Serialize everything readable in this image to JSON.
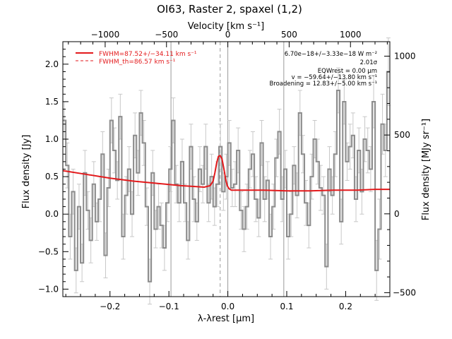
{
  "chart_data": {
    "type": "line",
    "title": "OI63, Raster 2, spaxel (1,2)",
    "xlabel": "λ-λrest [μm]",
    "ylabel": "Flux density [Jy]",
    "top_xlabel": "Velocity [km s⁻¹]",
    "right_ylabel": "Flux density [MJy sr⁻¹]",
    "xlim": [
      -0.28,
      0.275
    ],
    "ylim": [
      -1.1,
      2.3
    ],
    "top_xlim": [
      -1345,
      1321
    ],
    "right_ylim": [
      -525,
      1092
    ],
    "x_ticks": [
      -0.2,
      -0.1,
      0.0,
      0.1,
      0.2
    ],
    "x_tick_labels": [
      "−0.2",
      "−0.1",
      "0.0",
      "0.1",
      "0.2"
    ],
    "y_ticks": [
      -1.0,
      -0.5,
      0.0,
      0.5,
      1.0,
      1.5,
      2.0
    ],
    "y_tick_labels": [
      "−1.0",
      "−0.5",
      "0.0",
      "0.5",
      "1.0",
      "1.5",
      "2.0"
    ],
    "top_ticks": [
      -1000,
      -500,
      0,
      500,
      1000
    ],
    "top_tick_labels": [
      "−1000",
      "−500",
      "0",
      "500",
      "1000"
    ],
    "right_ticks": [
      0,
      500,
      1000
    ],
    "right_tick_labels": [
      "0",
      "500",
      "1000"
    ],
    "right_minor_ticks": [
      -500
    ],
    "right_minor_labels": [
      "−500"
    ],
    "vertical_lines": [
      -0.0965,
      0.0,
      0.095
    ],
    "rest_line": -0.013,
    "legend": [
      {
        "label": "FWHM=87.52+/−34.11 km s⁻¹",
        "style": "solid",
        "color": "#e31a1c"
      },
      {
        "label": "FWHM_th=86.57 km s⁻¹",
        "style": "dashed",
        "color": "#e31a1c"
      }
    ],
    "annotations": [
      "6.70e−18+/−3.33e−18 W m⁻²",
      "2.01σ",
      "EQWrest = 0.00 μm",
      "v = −59.64+/−13.80 km s⁻¹",
      "Broadening = 12.83+/−5.00 km s⁻¹"
    ],
    "spectrum": {
      "x": [
        -0.28,
        -0.275,
        -0.27,
        -0.265,
        -0.26,
        -0.255,
        -0.25,
        -0.245,
        -0.24,
        -0.235,
        -0.23,
        -0.225,
        -0.22,
        -0.215,
        -0.21,
        -0.205,
        -0.2,
        -0.195,
        -0.19,
        -0.185,
        -0.18,
        -0.175,
        -0.17,
        -0.165,
        -0.16,
        -0.155,
        -0.15,
        -0.145,
        -0.14,
        -0.135,
        -0.13,
        -0.125,
        -0.12,
        -0.115,
        -0.11,
        -0.105,
        -0.1,
        -0.095,
        -0.09,
        -0.085,
        -0.08,
        -0.075,
        -0.07,
        -0.065,
        -0.06,
        -0.055,
        -0.05,
        -0.045,
        -0.04,
        -0.035,
        -0.03,
        -0.025,
        -0.02,
        -0.015,
        -0.01,
        -0.005,
        0.0,
        0.005,
        0.01,
        0.015,
        0.02,
        0.025,
        0.03,
        0.035,
        0.04,
        0.045,
        0.05,
        0.055,
        0.06,
        0.065,
        0.07,
        0.075,
        0.08,
        0.085,
        0.09,
        0.095,
        0.1,
        0.105,
        0.11,
        0.115,
        0.12,
        0.125,
        0.13,
        0.135,
        0.14,
        0.145,
        0.15,
        0.155,
        0.16,
        0.165,
        0.17,
        0.175,
        0.18,
        0.185,
        0.19,
        0.195,
        0.2,
        0.205,
        0.21,
        0.215,
        0.22,
        0.225,
        0.23,
        0.235,
        0.24,
        0.245,
        0.25,
        0.255,
        0.26,
        0.265,
        0.27
      ],
      "y": [
        1.25,
        0.65,
        -0.3,
        0.3,
        -0.75,
        0.1,
        -0.65,
        0.55,
        0.05,
        -0.35,
        0.4,
        -0.1,
        0.2,
        0.8,
        -0.55,
        0.35,
        1.25,
        0.85,
        0.45,
        1.3,
        -0.3,
        0.25,
        0.6,
        0.0,
        1.05,
        0.55,
        1.35,
        0.95,
        0.1,
        -0.9,
        0.55,
        -0.2,
        0.1,
        -0.15,
        -0.45,
        0.15,
        0.6,
        1.25,
        0.4,
        0.15,
        0.7,
        0.15,
        -0.35,
        0.9,
        0.2,
        -0.1,
        0.6,
        0.4,
        0.9,
        0.15,
        0.5,
        0.1,
        0.4,
        0.9,
        0.3,
        0.5,
        0.95,
        0.35,
        0.4,
        0.85,
        0.05,
        -0.2,
        0.1,
        0.6,
        0.8,
        0.2,
        -0.05,
        0.95,
        0.2,
        0.45,
        -0.3,
        0.1,
        0.75,
        1.1,
        0.2,
        0.6,
        -0.3,
        0.0,
        0.65,
        0.25,
        1.35,
        0.8,
        0.15,
        -0.15,
        0.5,
        1.0,
        0.7,
        0.35,
        0.25,
        -0.7,
        0.6,
        0.25,
        0.8,
        1.65,
        -0.1,
        1.5,
        0.7,
        0.9,
        1.05,
        0.2,
        0.85,
        0.3,
        1.0,
        0.85,
        0.6,
        1.5,
        -0.75,
        -0.2,
        1.2,
        0.85,
        1.9
      ],
      "yerr": [
        0.25,
        0.3,
        0.3,
        0.3,
        0.3,
        0.3,
        0.25,
        0.3,
        0.25,
        0.3,
        0.3,
        0.25,
        0.3,
        0.3,
        0.3,
        0.25,
        0.3,
        0.3,
        0.25,
        0.3,
        0.3,
        0.25,
        0.3,
        0.3,
        0.3,
        0.3,
        0.3,
        0.3,
        0.25,
        0.3,
        0.3,
        0.25,
        0.3,
        0.3,
        0.3,
        0.25,
        0.3,
        0.3,
        0.25,
        0.25,
        0.3,
        0.25,
        0.25,
        0.3,
        0.3,
        0.25,
        0.3,
        0.25,
        0.3,
        0.25,
        0.3,
        0.25,
        0.3,
        0.3,
        0.25,
        0.3,
        0.3,
        0.25,
        0.3,
        0.3,
        0.25,
        0.3,
        0.3,
        0.25,
        0.3,
        0.3,
        0.25,
        0.3,
        0.3,
        0.25,
        0.3,
        0.3,
        0.25,
        0.3,
        0.3,
        0.25,
        0.3,
        0.3,
        0.25,
        0.3,
        0.3,
        0.25,
        0.3,
        0.3,
        0.3,
        0.25,
        0.3,
        0.3,
        0.25,
        0.3,
        0.3,
        0.25,
        0.3,
        0.3,
        0.3,
        0.3,
        0.25,
        0.3,
        0.3,
        0.3,
        0.3,
        0.3,
        0.3,
        0.3,
        0.3,
        0.35,
        0.4,
        0.4,
        0.4,
        0.35,
        0.45
      ]
    },
    "fit": {
      "x": [
        -0.28,
        -0.24,
        -0.2,
        -0.16,
        -0.12,
        -0.08,
        -0.06,
        -0.04,
        -0.03,
        -0.025,
        -0.022,
        -0.019,
        -0.016,
        -0.013,
        -0.01,
        -0.007,
        -0.004,
        -0.001,
        0.002,
        0.006,
        0.012,
        0.03,
        0.06,
        0.1,
        0.14,
        0.18,
        0.22,
        0.25,
        0.275
      ],
      "y": [
        0.58,
        0.53,
        0.48,
        0.44,
        0.41,
        0.38,
        0.37,
        0.36,
        0.38,
        0.44,
        0.55,
        0.68,
        0.77,
        0.78,
        0.74,
        0.62,
        0.48,
        0.38,
        0.34,
        0.32,
        0.32,
        0.32,
        0.32,
        0.31,
        0.31,
        0.32,
        0.32,
        0.33,
        0.33
      ]
    }
  }
}
